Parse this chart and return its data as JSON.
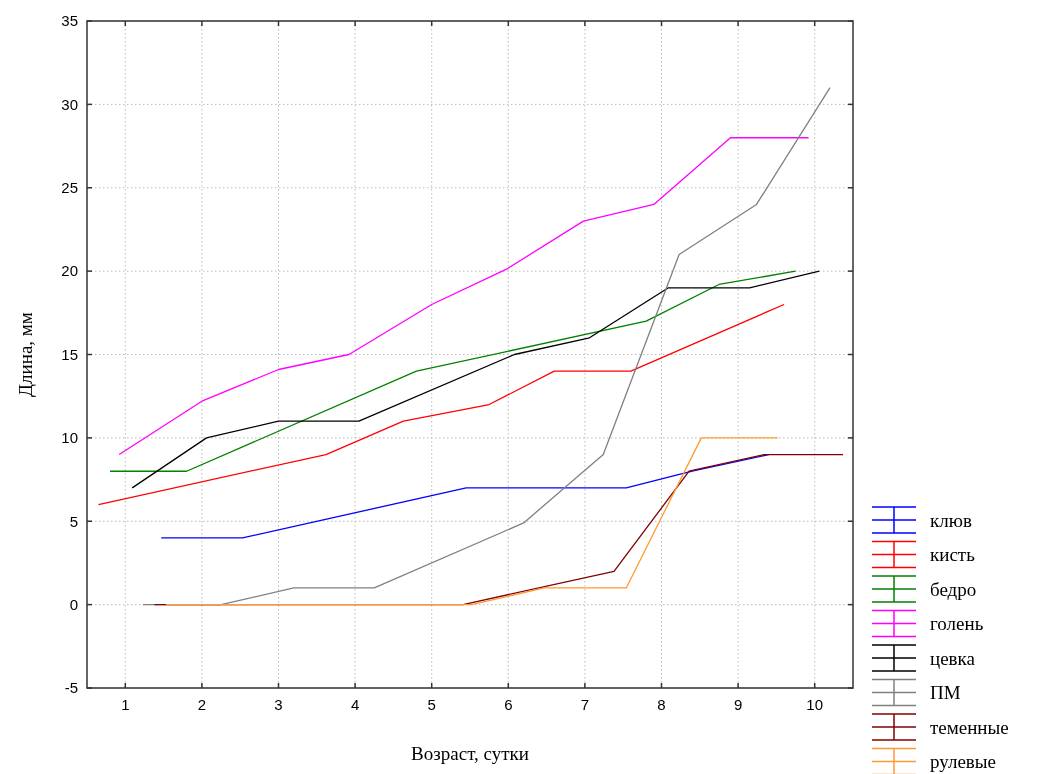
{
  "chart_data": {
    "type": "line",
    "xlabel": "Возраст, сутки",
    "ylabel": "Длина, мм",
    "xlim": [
      0.5,
      10.5
    ],
    "ylim": [
      -5,
      35
    ],
    "xticks": [
      1,
      2,
      3,
      4,
      5,
      6,
      7,
      8,
      9,
      10
    ],
    "yticks": [
      -5,
      0,
      5,
      10,
      15,
      20,
      25,
      30,
      35
    ],
    "grid": true,
    "legend": "bottom right",
    "marker": "none",
    "line_style": "solid",
    "series": [
      {
        "name": "клюв",
        "color": "#0000ff",
        "x": [
          1.47,
          2.53,
          5.45,
          7.54,
          8.4,
          9.4
        ],
        "values": [
          4,
          4,
          7,
          7,
          8,
          9
        ]
      },
      {
        "name": "кисть",
        "color": "#ff0000",
        "x": [
          0.65,
          3.62,
          4.63,
          5.75,
          6.6,
          7.6,
          9.6
        ],
        "values": [
          6,
          9,
          11,
          12,
          14,
          14,
          18
        ]
      },
      {
        "name": "бедро",
        "color": "#008000",
        "x": [
          0.8,
          1.8,
          4.8,
          7.8,
          8.75,
          9.75
        ],
        "values": [
          8,
          8,
          14,
          17,
          19.2,
          20
        ]
      },
      {
        "name": "голень",
        "color": "#ff00ff",
        "x": [
          0.92,
          2,
          3,
          3.92,
          5,
          5.97,
          6.98,
          7.9,
          8.9,
          9.92
        ],
        "values": [
          9,
          12.2,
          14.1,
          15,
          18,
          20.1,
          23,
          24,
          28,
          28
        ]
      },
      {
        "name": "цевка",
        "color": "#000000",
        "x": [
          1.09,
          2.06,
          3,
          4.05,
          6.08,
          7.06,
          8.09,
          9.15,
          10.06
        ],
        "values": [
          7,
          10,
          11,
          11,
          15,
          16,
          19,
          19,
          20
        ]
      },
      {
        "name": "ПМ",
        "color": "#808080",
        "x": [
          1.23,
          2.25,
          3.2,
          4.25,
          6.2,
          7.24,
          8.23,
          9.24,
          10.2
        ],
        "values": [
          0,
          0,
          1,
          1,
          4.9,
          9,
          21,
          24,
          31
        ]
      },
      {
        "name": "теменные",
        "color": "#800000",
        "x": [
          1.38,
          5.41,
          7.38,
          8.36,
          9.34,
          10.37
        ],
        "values": [
          0,
          0,
          2,
          8,
          9,
          9
        ]
      },
      {
        "name": "рулевые",
        "color": "#ff9933",
        "x": [
          1.53,
          5.52,
          6.47,
          7.54,
          8.52,
          9.52
        ],
        "values": [
          0,
          0,
          1,
          1,
          10,
          10
        ]
      }
    ]
  }
}
